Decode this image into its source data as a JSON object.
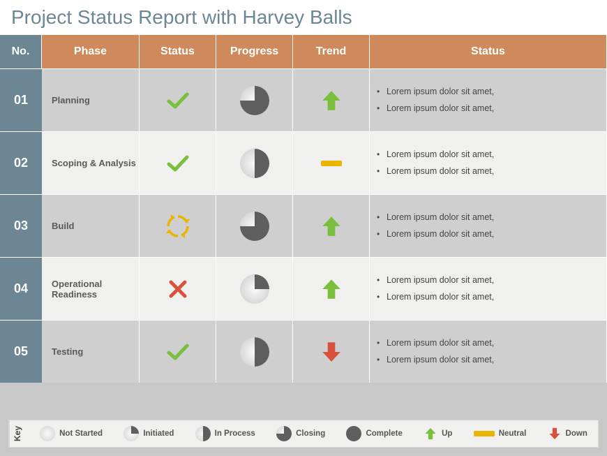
{
  "title": "Project Status Report with Harvey Balls",
  "colors": {
    "header_no_bg": "#6c8694",
    "header_bg": "#cf8a5c",
    "title_text": "#6c8694",
    "row_alt_a": "#cfcfcf",
    "row_alt_b": "#f0f0ee",
    "check_green": "#79bf3d",
    "cross_red": "#d9513d",
    "cycle_yellow": "#e9b罗00",
    "trend_up": "#79bf3d",
    "trend_down": "#d9513d",
    "trend_neutral": "#e9b500",
    "harvey_fill": "#5e5e5e",
    "harvey_empty": "#e6e6e6"
  },
  "columns": {
    "no": "No.",
    "phase": "Phase",
    "status": "Status",
    "progress": "Progress",
    "trend": "Trend",
    "note": "Status"
  },
  "rows": [
    {
      "no": "01",
      "phase": "Planning",
      "status": "check",
      "progress": 0.75,
      "trend": "up",
      "notes": [
        "Lorem ipsum dolor sit amet,",
        "Lorem ipsum dolor sit amet,"
      ]
    },
    {
      "no": "02",
      "phase": "Scoping & Analysis",
      "status": "check",
      "progress": 0.5,
      "trend": "neutral",
      "notes": [
        "Lorem ipsum dolor sit amet,",
        "Lorem ipsum dolor sit amet,"
      ]
    },
    {
      "no": "03",
      "phase": "Build",
      "status": "cycle",
      "progress": 0.75,
      "trend": "up",
      "notes": [
        "Lorem ipsum dolor sit amet,",
        "Lorem ipsum dolor sit amet,"
      ]
    },
    {
      "no": "04",
      "phase": "Operational Readiness",
      "status": "cross",
      "progress": 0.25,
      "trend": "up",
      "notes": [
        "Lorem ipsum dolor sit amet,",
        "Lorem ipsum dolor sit amet,"
      ]
    },
    {
      "no": "05",
      "phase": "Testing",
      "status": "check",
      "progress": 0.5,
      "trend": "down",
      "notes": [
        "Lorem ipsum dolor sit amet,",
        "Lorem ipsum dolor sit amet,"
      ]
    }
  ],
  "key": {
    "label": "Key",
    "harvey": [
      {
        "label": "Not Started",
        "value": 0.0
      },
      {
        "label": "Initiated",
        "value": 0.25
      },
      {
        "label": "In Process",
        "value": 0.5
      },
      {
        "label": "Closing",
        "value": 0.75
      },
      {
        "label": "Complete",
        "value": 1.0
      }
    ],
    "trend": [
      {
        "label": "Up",
        "kind": "up"
      },
      {
        "label": "Neutral",
        "kind": "neutral"
      },
      {
        "label": "Down",
        "kind": "down"
      }
    ]
  }
}
